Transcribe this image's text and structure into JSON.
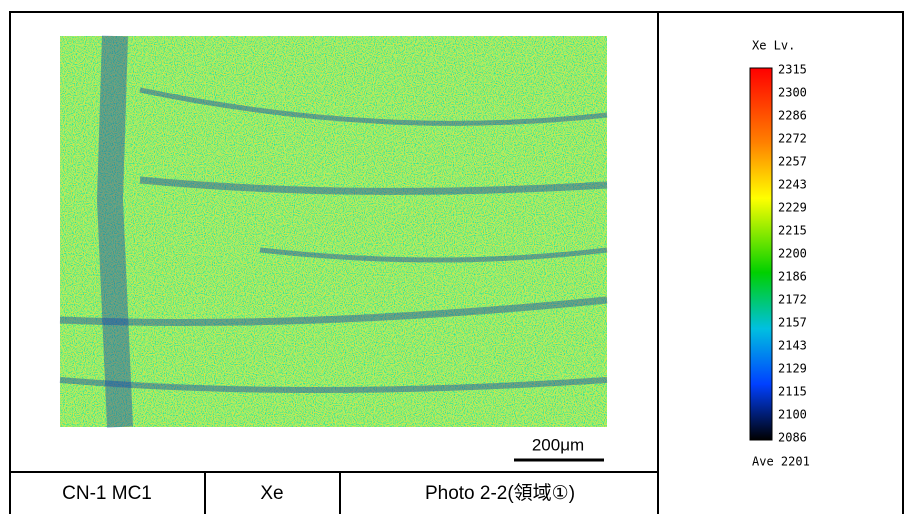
{
  "scale_bar": "200μm",
  "legend": {
    "title": "Xe Lv.",
    "levels": [
      2315,
      2300,
      2286,
      2272,
      2257,
      2243,
      2229,
      2215,
      2200,
      2186,
      2172,
      2157,
      2143,
      2129,
      2115,
      2100,
      2086
    ],
    "average": "Ave 2201"
  },
  "table": {
    "cells": [
      "CN-1 MC1",
      "Xe",
      "Photo 2-2(領域①)"
    ]
  }
}
